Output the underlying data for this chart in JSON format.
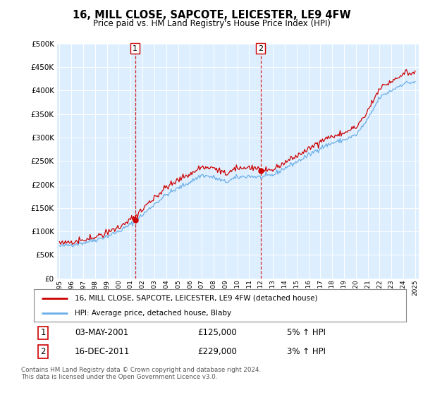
{
  "title": "16, MILL CLOSE, SAPCOTE, LEICESTER, LE9 4FW",
  "subtitle": "Price paid vs. HM Land Registry's House Price Index (HPI)",
  "legend_line1": "16, MILL CLOSE, SAPCOTE, LEICESTER, LE9 4FW (detached house)",
  "legend_line2": "HPI: Average price, detached house, Blaby",
  "annotation1_label": "1",
  "annotation1_date": "03-MAY-2001",
  "annotation1_price": "£125,000",
  "annotation1_hpi": "5% ↑ HPI",
  "annotation2_label": "2",
  "annotation2_date": "16-DEC-2011",
  "annotation2_price": "£229,000",
  "annotation2_hpi": "3% ↑ HPI",
  "footnote": "Contains HM Land Registry data © Crown copyright and database right 2024.\nThis data is licensed under the Open Government Licence v3.0.",
  "sale1_x": 2001.37,
  "sale1_y": 125000,
  "sale2_x": 2011.96,
  "sale2_y": 229000,
  "hpi_color": "#6aaee8",
  "price_color": "#cc0000",
  "bg_color_main": "#ddeeff",
  "bg_color_highlighted": "#cce0f5",
  "ylim": [
    0,
    500000
  ],
  "xlim": [
    1994.8,
    2025.3
  ],
  "yticks": [
    0,
    50000,
    100000,
    150000,
    200000,
    250000,
    300000,
    350000,
    400000,
    450000,
    500000
  ]
}
